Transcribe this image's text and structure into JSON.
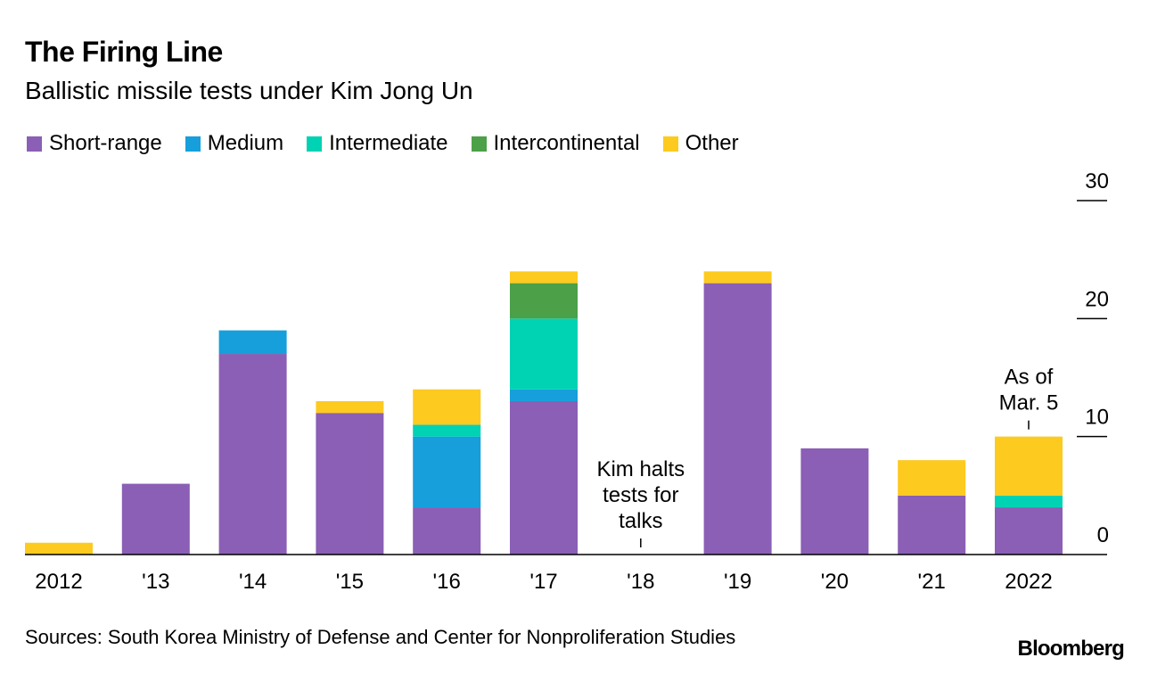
{
  "title": "The Firing Line",
  "subtitle": "Ballistic missile tests under Kim Jong Un",
  "legend": [
    {
      "label": "Short-range",
      "color": "#8a5fb5"
    },
    {
      "label": "Medium",
      "color": "#169fdb"
    },
    {
      "label": "Intermediate",
      "color": "#00d2b4"
    },
    {
      "label": "Intercontinental",
      "color": "#4ca048"
    },
    {
      "label": "Other",
      "color": "#fdca20"
    }
  ],
  "source": "Sources: South Korea Ministry of Defense and Center for Nonproliferation Studies",
  "brand": "Bloomberg",
  "chart_data": {
    "type": "bar",
    "stacked": true,
    "categories": [
      "2012",
      "'13",
      "'14",
      "'15",
      "'16",
      "'17",
      "'18",
      "'19",
      "'20",
      "'21",
      "2022"
    ],
    "series": [
      {
        "name": "Short-range",
        "color": "#8a5fb5",
        "values": [
          0,
          6,
          17,
          12,
          4,
          13,
          0,
          23,
          9,
          5,
          4
        ]
      },
      {
        "name": "Medium",
        "color": "#169fdb",
        "values": [
          0,
          0,
          2,
          0,
          6,
          1,
          0,
          0,
          0,
          0,
          0
        ]
      },
      {
        "name": "Intermediate",
        "color": "#00d2b4",
        "values": [
          0,
          0,
          0,
          0,
          1,
          6,
          0,
          0,
          0,
          0,
          1
        ]
      },
      {
        "name": "Intercontinental",
        "color": "#4ca048",
        "values": [
          0,
          0,
          0,
          0,
          0,
          3,
          0,
          0,
          0,
          0,
          0
        ]
      },
      {
        "name": "Other",
        "color": "#fdca20",
        "values": [
          1,
          0,
          0,
          1,
          3,
          1,
          0,
          1,
          0,
          3,
          5
        ]
      }
    ],
    "y_ticks": [
      0,
      10,
      20,
      30
    ],
    "ylim": [
      0,
      30
    ],
    "y_axis_side": "right",
    "grid": false,
    "annotations": [
      {
        "category": "'18",
        "text": [
          "Kim halts",
          "tests for",
          "talks"
        ]
      },
      {
        "category": "2022",
        "text": [
          "As of",
          "Mar. 5"
        ]
      }
    ]
  }
}
